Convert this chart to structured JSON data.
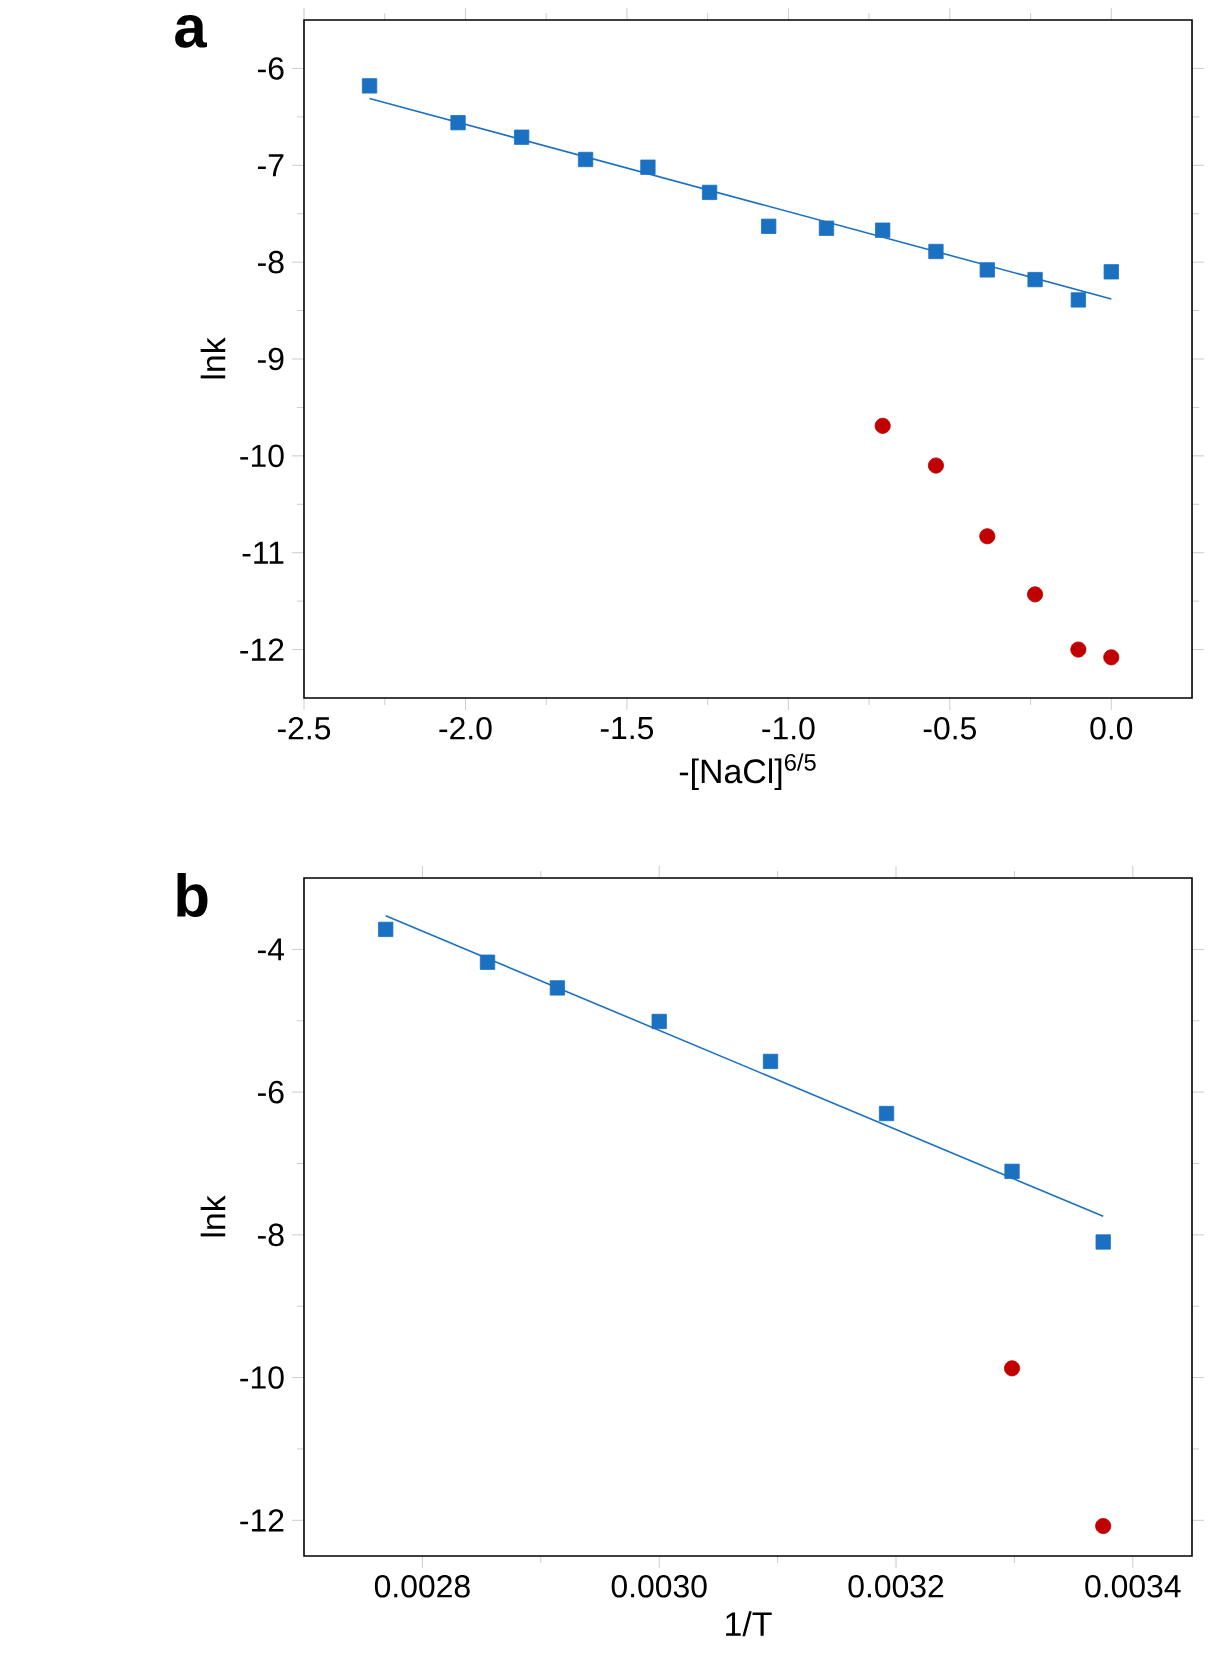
{
  "chart_data": [
    {
      "type": "scatter",
      "title": "a",
      "xlabel": "-[NaCl]$^{6/5}$",
      "ylabel": "lnk",
      "xlim": [
        -2.5,
        0.25
      ],
      "ylim": [
        -12.5,
        -5.5
      ],
      "xticks": [
        -2.5,
        {
          "value": -2,
          "label": "-2.0"
        },
        -1.5,
        {
          "value": -1,
          "label": "-1.0"
        },
        -0.5,
        {
          "value": 0,
          "label": "0.0"
        }
      ],
      "yticks": [
        -12,
        -11,
        -10,
        -9,
        -8,
        -7,
        -6
      ],
      "grid": false,
      "series": [
        {
          "marker": "square",
          "color": "#1a70c1",
          "x": [
            -2.297,
            -2.023,
            -1.826,
            -1.628,
            -1.435,
            -1.244,
            -1.061,
            -0.882,
            -0.708,
            -0.543,
            -0.384,
            -0.236,
            -0.102,
            0.0
          ],
          "values": [
            -6.18,
            -6.56,
            -6.71,
            -6.94,
            -7.02,
            -7.28,
            -7.63,
            -7.65,
            -7.67,
            -7.89,
            -8.08,
            -8.18,
            -8.39,
            -8.1
          ]
        },
        {
          "marker": "circle",
          "color": "#c00000",
          "x": [
            -0.708,
            -0.543,
            -0.384,
            -0.236,
            -0.102,
            0.0
          ],
          "values": [
            -9.69,
            -10.1,
            -10.83,
            -11.43,
            -12.0,
            -12.08
          ]
        },
        {
          "type": "line",
          "color": "#1a70c1",
          "x": [
            -2.297,
            0.0
          ],
          "values": [
            -6.31,
            -8.38
          ]
        }
      ]
    },
    {
      "type": "scatter",
      "title": "b",
      "xlabel": "1/T",
      "ylabel": "lnk",
      "xlim": [
        0.0027,
        0.00345
      ],
      "ylim": [
        -12.5,
        -3
      ],
      "xticks": [
        0.0028,
        {
          "value": 0.003,
          "label": "0.0030"
        },
        0.0032,
        0.0034
      ],
      "yticks": [
        -12,
        -10,
        -8,
        -6,
        -4
      ],
      "grid": false,
      "series": [
        {
          "marker": "square",
          "color": "#1a70c1",
          "x": [
            0.002769,
            0.002855,
            0.002914,
            0.003,
            0.003094,
            0.003192,
            0.003298,
            0.003375
          ],
          "values": [
            -3.72,
            -4.18,
            -4.54,
            -5.01,
            -5.57,
            -6.3,
            -7.11,
            -8.1
          ]
        },
        {
          "marker": "circle",
          "color": "#c00000",
          "x": [
            0.003298,
            0.003375
          ],
          "values": [
            -9.87,
            -12.08
          ]
        },
        {
          "type": "line",
          "color": "#1a70c1",
          "x": [
            0.002769,
            0.003375
          ],
          "values": [
            -3.53,
            -7.74
          ]
        }
      ]
    }
  ]
}
